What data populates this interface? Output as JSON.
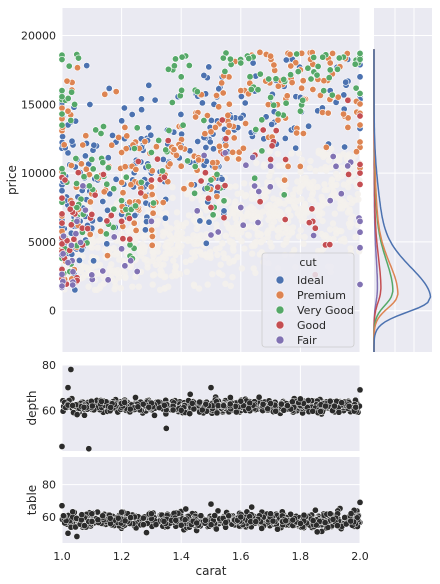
{
  "figure": {
    "xlabel": "carat",
    "xticks": [
      "1.0",
      "1.2",
      "1.4",
      "1.6",
      "1.8",
      "2.0"
    ],
    "xlim": [
      1.0,
      2.0
    ]
  },
  "main_scatter": {
    "ylabel": "price",
    "yticks": [
      "0",
      "5000",
      "10000",
      "15000",
      "20000"
    ],
    "ylim": [
      -3000,
      22000
    ]
  },
  "depth_panel": {
    "ylabel": "depth",
    "yticks": [
      "60",
      "80"
    ],
    "ylim": [
      42,
      80
    ]
  },
  "table_panel": {
    "ylabel": "table",
    "yticks": [
      "60",
      "80"
    ],
    "ylim": [
      44,
      97
    ]
  },
  "legend": {
    "title": "cut",
    "placement": "lower-right"
  },
  "colors": {
    "background": "#eaeaf2",
    "grid": "#ffffff",
    "Ideal": "#4c72b0",
    "Premium": "#dd8452",
    "Very Good": "#55a868",
    "Good": "#c44e52",
    "Fair": "#8172b3",
    "marker_dark": "#2b2b2b"
  },
  "chart_data": [
    {
      "type": "scatter",
      "xlabel": "carat",
      "ylabel": "price",
      "xlim": [
        1.0,
        2.0
      ],
      "ylim": [
        -3000,
        22000
      ],
      "grid": true,
      "legend_title": "cut",
      "legend_position": "lower-right",
      "series": [
        {
          "name": "Ideal",
          "x": [
            1.0,
            1.01,
            1.02,
            1.03,
            1.05,
            1.1,
            1.12,
            1.2,
            1.21,
            1.24,
            1.3,
            1.34,
            1.4,
            1.5,
            1.51,
            1.52,
            1.6,
            1.7,
            1.8,
            1.9,
            2.0
          ],
          "y": [
            5200,
            8000,
            13500,
            4500,
            11000,
            6000,
            9500,
            7000,
            12500,
            9000,
            10000,
            11000,
            12000,
            9000,
            15000,
            10500,
            14000,
            15000,
            15500,
            16000,
            17000
          ]
        },
        {
          "name": "Premium",
          "x": [
            1.0,
            1.02,
            1.05,
            1.1,
            1.2,
            1.25,
            1.3,
            1.4,
            1.5,
            1.55,
            1.6,
            1.7,
            1.75,
            1.8,
            1.9,
            2.0
          ],
          "y": [
            4800,
            14500,
            6500,
            8500,
            11500,
            7500,
            9000,
            10500,
            13000,
            12000,
            16000,
            18500,
            14000,
            17500,
            18000,
            13500
          ]
        },
        {
          "name": "Very Good",
          "x": [
            1.0,
            1.01,
            1.05,
            1.1,
            1.2,
            1.3,
            1.4,
            1.5,
            1.6,
            1.7,
            1.8,
            1.9,
            2.0
          ],
          "y": [
            16000,
            4500,
            7500,
            11000,
            8000,
            11500,
            17000,
            9500,
            18000,
            15500,
            14500,
            17500,
            18700
          ]
        },
        {
          "name": "Good",
          "x": [
            1.0,
            1.01,
            1.04,
            1.1,
            1.2,
            1.3,
            1.5,
            1.55,
            1.7,
            1.85,
            2.0
          ],
          "y": [
            3000,
            9500,
            5200,
            7000,
            6500,
            9500,
            7500,
            12500,
            11000,
            6000,
            10000
          ]
        },
        {
          "name": "Fair",
          "x": [
            1.0,
            1.02,
            1.05,
            1.1,
            1.2,
            1.3,
            1.5,
            1.6,
            1.7,
            1.9,
            2.0
          ],
          "y": [
            1800,
            3500,
            6500,
            2600,
            4500,
            6500,
            5500,
            7500,
            10500,
            8000,
            6500
          ]
        }
      ]
    },
    {
      "type": "line",
      "title": "",
      "note_type": "kde marginal of price by cut",
      "y_range": [
        -3000,
        22000
      ],
      "series": [
        {
          "name": "Ideal",
          "peak_price": 800,
          "peak_density_rel": 1.0
        },
        {
          "name": "Premium",
          "peak_price": 1100,
          "peak_density_rel": 0.42
        },
        {
          "name": "Very Good",
          "peak_price": 1300,
          "peak_density_rel": 0.33
        },
        {
          "name": "Good",
          "peak_price": 1500,
          "peak_density_rel": 0.12
        },
        {
          "name": "Fair",
          "peak_price": 1500,
          "peak_density_rel": 0.06
        }
      ]
    },
    {
      "type": "scatter",
      "xlabel": "carat",
      "ylabel": "depth",
      "xlim": [
        1.0,
        2.0
      ],
      "ylim": [
        42,
        80
      ],
      "grid": true,
      "series": [
        {
          "name": "",
          "x": [
            1.0,
            1.02,
            1.03,
            1.09,
            1.35,
            1.4,
            1.5,
            1.6,
            1.7,
            1.8,
            1.9,
            2.0
          ],
          "y": [
            44,
            70,
            78,
            43,
            52,
            60,
            70,
            64,
            63,
            65,
            64,
            69
          ]
        }
      ]
    },
    {
      "type": "scatter",
      "xlabel": "carat",
      "ylabel": "table",
      "xlim": [
        1.0,
        2.0
      ],
      "ylim": [
        44,
        97
      ],
      "grid": true,
      "series": [
        {
          "name": "",
          "x": [
            1.0,
            1.02,
            1.05,
            1.1,
            1.2,
            1.3,
            1.4,
            1.5,
            1.6,
            1.7,
            1.8,
            1.9,
            2.0
          ],
          "y": [
            67,
            50,
            48,
            62,
            63,
            62,
            55,
            68,
            60,
            62,
            56,
            62,
            69
          ]
        }
      ]
    }
  ]
}
